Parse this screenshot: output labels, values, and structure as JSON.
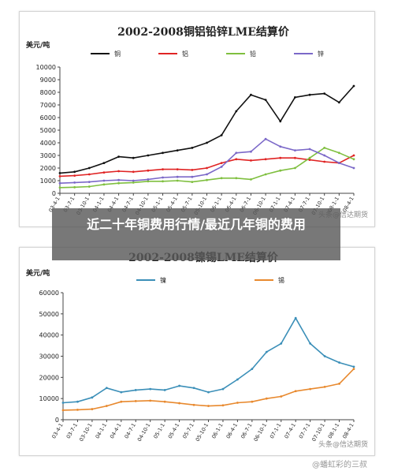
{
  "caption": "近二十年铜费用行情/最近几年铜的费用",
  "footer_watermark": "@蟠虹彩的三叔",
  "chart_data": [
    {
      "type": "line",
      "title": "2002-2008铜铝铅锌LME结算价",
      "ylabel": "美元/吨",
      "ylim": [
        0,
        10000
      ],
      "yticks": [
        0,
        1000,
        2000,
        3000,
        4000,
        5000,
        6000,
        7000,
        8000,
        9000,
        10000
      ],
      "legend": "top-center",
      "grid": false,
      "watermark": "头条@信达期货",
      "x": [
        "03-4-1",
        "03-7-1",
        "03-10-1",
        "04-1-1",
        "04-4-1",
        "04-7-1",
        "04-10-1",
        "05-1-1",
        "05-4-1",
        "05-7-1",
        "05-10-1",
        "06-1-1",
        "06-4-1",
        "06-7-1",
        "06-10-1",
        "07-1-1",
        "07-4-1",
        "07-7-1",
        "07-10-1",
        "08-1-1",
        "08-4-1"
      ],
      "xticks": [
        "03-4-1",
        "03-7-1",
        "03-10-1",
        "04-1-1",
        "04-4-1",
        "04-7-1",
        "04-10-1",
        "05-1-1",
        "05-4-1",
        "05-7-1",
        "05-10-1",
        "06-1-1",
        "06-4-1",
        "06-7-1",
        "06-10-1",
        "07-1-1",
        "07-4-1",
        "07-7-1",
        "07-10-1",
        "08-1-1",
        "08-4-1"
      ],
      "series": [
        {
          "name": "铜",
          "color": "#111111",
          "values": [
            1600,
            1700,
            2000,
            2400,
            2900,
            2800,
            3000,
            3200,
            3400,
            3600,
            4000,
            4600,
            6500,
            7800,
            7400,
            5700,
            7600,
            7800,
            7900,
            7200,
            8500
          ]
        },
        {
          "name": "铝",
          "color": "#e02424",
          "values": [
            1350,
            1400,
            1500,
            1650,
            1750,
            1700,
            1800,
            1900,
            1900,
            1850,
            2000,
            2400,
            2700,
            2600,
            2700,
            2800,
            2800,
            2650,
            2500,
            2400,
            3000
          ]
        },
        {
          "name": "铅",
          "color": "#7fbf3f",
          "values": [
            450,
            480,
            530,
            700,
            800,
            850,
            950,
            950,
            1000,
            900,
            1050,
            1200,
            1200,
            1100,
            1500,
            1800,
            2000,
            2800,
            3600,
            3200,
            2700
          ]
        },
        {
          "name": "锌",
          "color": "#7b68c8",
          "values": [
            800,
            850,
            900,
            1000,
            1050,
            1000,
            1100,
            1250,
            1300,
            1300,
            1500,
            2100,
            3200,
            3300,
            4300,
            3700,
            3400,
            3500,
            3000,
            2400,
            2000
          ]
        }
      ]
    },
    {
      "type": "line",
      "title": "2002-2008镍锡LME结算价",
      "ylabel": "美元/吨",
      "ylim": [
        0,
        60000
      ],
      "yticks": [
        0,
        10000,
        20000,
        30000,
        40000,
        50000,
        60000
      ],
      "legend": "top-center",
      "grid": false,
      "watermark": "头条@信达期货",
      "x": [
        "03-4-1",
        "03-7-1",
        "03-10-1",
        "04-1-1",
        "04-4-1",
        "04-7-1",
        "04-10-1",
        "05-1-1",
        "05-4-1",
        "05-7-1",
        "05-10-1",
        "06-1-1",
        "06-4-1",
        "06-7-1",
        "06-10-1",
        "07-1-1",
        "07-4-1",
        "07-7-1",
        "07-10-1",
        "08-1-1",
        "08-4-1"
      ],
      "xticks": [
        "03-4-1",
        "03-7-1",
        "03-10-1",
        "04-1-1",
        "04-4-1",
        "04-7-1",
        "04-10-1",
        "05-1-1",
        "05-4-1",
        "05-7-1",
        "05-10-1",
        "06-1-1",
        "06-4-1",
        "06-7-1",
        "06-10-1",
        "07-1-1",
        "07-4-1",
        "07-7-1",
        "07-10-1",
        "08-1-1",
        "08-4-1"
      ],
      "series": [
        {
          "name": "镍",
          "color": "#3b8fb8",
          "values": [
            8000,
            8500,
            10500,
            15000,
            13000,
            14000,
            14500,
            14000,
            16000,
            15000,
            13000,
            14500,
            19000,
            24000,
            32000,
            36000,
            48000,
            36000,
            30000,
            27000,
            25000
          ]
        },
        {
          "name": "锡",
          "color": "#e8892e",
          "values": [
            4500,
            4700,
            5000,
            6500,
            8500,
            8800,
            9000,
            8500,
            7800,
            7000,
            6500,
            6800,
            8000,
            8500,
            10000,
            11000,
            13500,
            14500,
            15500,
            17000,
            24000
          ]
        }
      ]
    }
  ]
}
